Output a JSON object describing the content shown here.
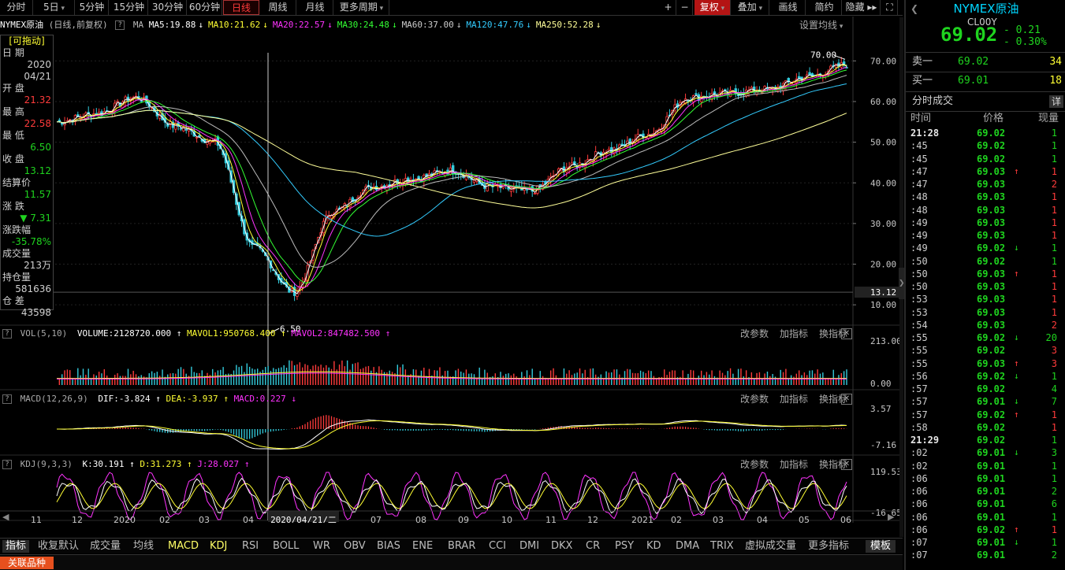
{
  "toolbar": {
    "buttons": [
      "分时",
      "5日",
      "5分钟",
      "15分钟",
      "30分钟",
      "60分钟",
      "日线",
      "周线",
      "月线",
      "更多周期"
    ],
    "right_buttons": [
      "+",
      "−",
      "复权",
      "叠加",
      "画线",
      "简约",
      "隐藏 ▸▸"
    ],
    "fullscreen_glyph": "⛶"
  },
  "symbol_header": {
    "name": "NYMEX原油",
    "mode": "(日线,前复权)",
    "ma_prefix": "MA",
    "ma": [
      {
        "label": "MA5:19.88",
        "color": "#ffffff",
        "arrow": "↓"
      },
      {
        "label": "MA10:21.62",
        "color": "#ffff33",
        "arrow": "↓"
      },
      {
        "label": "MA20:22.57",
        "color": "#ff33ff",
        "arrow": "↓"
      },
      {
        "label": "MA30:24.48",
        "color": "#33ff33",
        "arrow": "↓"
      },
      {
        "label": "MA60:37.00",
        "color": "#cccccc",
        "arrow": "↓"
      },
      {
        "label": "MA120:47.76",
        "color": "#33ccff",
        "arrow": "↓"
      },
      {
        "label": "MA250:52.28",
        "color": "#ffff99",
        "arrow": "↓"
      }
    ],
    "settings": "设置均线"
  },
  "infobox": {
    "draggable": "[可拖动]",
    "date_label": "日    期",
    "date_year": "2020",
    "date_md": "04/21",
    "open_label": "开    盘",
    "open": "21.32",
    "high_label": "最    高",
    "high": "22.58",
    "low_label": "最    低",
    "low": "6.50",
    "close_label": "收    盘",
    "close": "13.12",
    "settle_label": "结算价",
    "settle": "11.57",
    "chg_label": "涨    跌",
    "chg": "▼ 7.31",
    "chgpct_label": "涨跌幅",
    "chgpct": "-35.78%",
    "vol_label": "成交量",
    "vol": "213万",
    "oi_label": "持仓量",
    "oi": "581636",
    "diff_label": "仓    差",
    "diff": "43598"
  },
  "price_axis": {
    "ticks": [
      "70.00",
      "60.00",
      "50.00",
      "40.00",
      "30.00",
      "20.00",
      "10.00"
    ],
    "current": "13.12"
  },
  "annotations": {
    "max_label": "70.00",
    "min_label": "6.50"
  },
  "vol_panel": {
    "title": "VOL(5,10)",
    "volume": "VOLUME:2128720.000",
    "mavol1": "MAVOL1:950768.400",
    "mavol2": "MAVOL2:847482.500",
    "axis_top": "213.00",
    "axis_bottom": "0.00"
  },
  "macd_panel": {
    "title": "MACD(12,26,9)",
    "dif": "DIF:-3.824",
    "dea": "DEA:-3.937",
    "macd": "MACD:0.227",
    "axis_top": "3.57",
    "axis_bottom": "-7.16"
  },
  "kdj_panel": {
    "title": "KDJ(9,3,3)",
    "k": "K:30.191",
    "d": "D:31.273",
    "j": "J:28.027",
    "axis_top": "119.53",
    "axis_bottom": "-16.65"
  },
  "panel_controls": [
    "改参数",
    "加指标",
    "换指标"
  ],
  "x_axis": {
    "labels": [
      "11",
      "12",
      "2020",
      "02",
      "03",
      "04",
      "2020/04/21/二",
      "07",
      "08",
      "09",
      "10",
      "11",
      "12",
      "2021",
      "02",
      "03",
      "04",
      "05",
      "06"
    ]
  },
  "indicator_tabs": [
    "指标",
    "收复默认",
    "成交量",
    "均线",
    "MACD",
    "KDJ",
    "RSI",
    "BOLL",
    "WR",
    "OBV",
    "BIAS",
    "ENE",
    "BRAR",
    "CCI",
    "DMI",
    "DKX",
    "CR",
    "PSY",
    "KD",
    "DMA",
    "TRIX",
    "虚拟成交量",
    "更多指标",
    "模板"
  ],
  "status": {
    "left": "关联品种"
  },
  "right_panel": {
    "title": "NYMEX原油",
    "code": "CL00Y",
    "price": "69.02",
    "change": "- 0.21",
    "change_pct": "- 0.30%",
    "ask_label": "卖一",
    "ask_price": "69.02",
    "ask_vol": "34",
    "bid_label": "买一",
    "bid_price": "69.01",
    "bid_vol": "18",
    "ticks_title": "分时成交",
    "ticks_detail": "详",
    "col_time": "时间",
    "col_price": "价格",
    "col_vol": "现量",
    "ticks": [
      {
        "t": "21:28",
        "p": "69.02",
        "a": "",
        "v": "1",
        "c": "green"
      },
      {
        "t": ":45",
        "p": "69.02",
        "a": "",
        "v": "1",
        "c": "green"
      },
      {
        "t": ":45",
        "p": "69.02",
        "a": "",
        "v": "1",
        "c": "green"
      },
      {
        "t": ":47",
        "p": "69.03",
        "a": "↑",
        "v": "1",
        "c": "red"
      },
      {
        "t": ":47",
        "p": "69.03",
        "a": "",
        "v": "2",
        "c": "red"
      },
      {
        "t": ":48",
        "p": "69.03",
        "a": "",
        "v": "1",
        "c": "red"
      },
      {
        "t": ":48",
        "p": "69.03",
        "a": "",
        "v": "1",
        "c": "red"
      },
      {
        "t": ":49",
        "p": "69.03",
        "a": "",
        "v": "1",
        "c": "red"
      },
      {
        "t": ":49",
        "p": "69.03",
        "a": "",
        "v": "1",
        "c": "red"
      },
      {
        "t": ":49",
        "p": "69.02",
        "a": "↓",
        "v": "1",
        "c": "green"
      },
      {
        "t": ":50",
        "p": "69.02",
        "a": "",
        "v": "1",
        "c": "green"
      },
      {
        "t": ":50",
        "p": "69.03",
        "a": "↑",
        "v": "1",
        "c": "red"
      },
      {
        "t": ":50",
        "p": "69.03",
        "a": "",
        "v": "1",
        "c": "red"
      },
      {
        "t": ":53",
        "p": "69.03",
        "a": "",
        "v": "1",
        "c": "red"
      },
      {
        "t": ":53",
        "p": "69.03",
        "a": "",
        "v": "1",
        "c": "red"
      },
      {
        "t": ":54",
        "p": "69.03",
        "a": "",
        "v": "2",
        "c": "red"
      },
      {
        "t": ":55",
        "p": "69.02",
        "a": "↓",
        "v": "20",
        "c": "green"
      },
      {
        "t": ":55",
        "p": "69.02",
        "a": "",
        "v": "3",
        "c": "red"
      },
      {
        "t": ":55",
        "p": "69.03",
        "a": "↑",
        "v": "3",
        "c": "red"
      },
      {
        "t": ":56",
        "p": "69.02",
        "a": "↓",
        "v": "1",
        "c": "green"
      },
      {
        "t": ":57",
        "p": "69.02",
        "a": "",
        "v": "4",
        "c": "green"
      },
      {
        "t": ":57",
        "p": "69.01",
        "a": "↓",
        "v": "7",
        "c": "green"
      },
      {
        "t": ":57",
        "p": "69.02",
        "a": "↑",
        "v": "1",
        "c": "red"
      },
      {
        "t": ":58",
        "p": "69.02",
        "a": "",
        "v": "1",
        "c": "red"
      },
      {
        "t": "21:29",
        "p": "69.02",
        "a": "",
        "v": "1",
        "c": "green"
      },
      {
        "t": ":02",
        "p": "69.01",
        "a": "↓",
        "v": "3",
        "c": "green"
      },
      {
        "t": ":02",
        "p": "69.01",
        "a": "",
        "v": "1",
        "c": "green"
      },
      {
        "t": ":06",
        "p": "69.01",
        "a": "",
        "v": "1",
        "c": "green"
      },
      {
        "t": ":06",
        "p": "69.01",
        "a": "",
        "v": "2",
        "c": "green"
      },
      {
        "t": ":06",
        "p": "69.01",
        "a": "",
        "v": "6",
        "c": "green"
      },
      {
        "t": ":06",
        "p": "69.01",
        "a": "",
        "v": "1",
        "c": "green"
      },
      {
        "t": ":06",
        "p": "69.02",
        "a": "↑",
        "v": "1",
        "c": "red"
      },
      {
        "t": ":07",
        "p": "69.01",
        "a": "↓",
        "v": "1",
        "c": "green"
      },
      {
        "t": ":07",
        "p": "69.01",
        "a": "",
        "v": "2",
        "c": "green"
      }
    ]
  },
  "chart_data": {
    "type": "candlestick",
    "title": "NYMEX原油",
    "ylim": [
      5,
      72
    ],
    "ma_legend": [
      "MA5",
      "MA10",
      "MA20",
      "MA30",
      "MA60",
      "MA120",
      "MA250"
    ],
    "x_labels": [
      "11",
      "12",
      "2020",
      "02",
      "03",
      "04",
      "2020/04/21/二",
      "07",
      "08",
      "09",
      "10",
      "11",
      "12",
      "2021",
      "02",
      "03",
      "04",
      "05",
      "06"
    ],
    "close_path": [
      [
        "2019-10",
        55
      ],
      [
        "2019-11",
        57
      ],
      [
        "2019-12",
        61
      ],
      [
        "2020-01",
        54
      ],
      [
        "2020-02",
        50
      ],
      [
        "2020-03",
        24
      ],
      [
        "2020-04",
        13.12
      ],
      [
        "2020-05",
        33
      ],
      [
        "2020-06",
        39
      ],
      [
        "2020-07",
        41
      ],
      [
        "2020-08",
        43
      ],
      [
        "2020-09",
        39
      ],
      [
        "2020-10",
        38
      ],
      [
        "2020-11",
        44
      ],
      [
        "2020-12",
        48
      ],
      [
        "2021-01",
        52
      ],
      [
        "2021-02",
        61
      ],
      [
        "2021-03",
        62
      ],
      [
        "2021-04",
        63
      ],
      [
        "2021-05",
        66
      ],
      [
        "2021-06",
        69.02
      ]
    ],
    "extremes": {
      "max": 70.0,
      "min": 6.5
    }
  }
}
